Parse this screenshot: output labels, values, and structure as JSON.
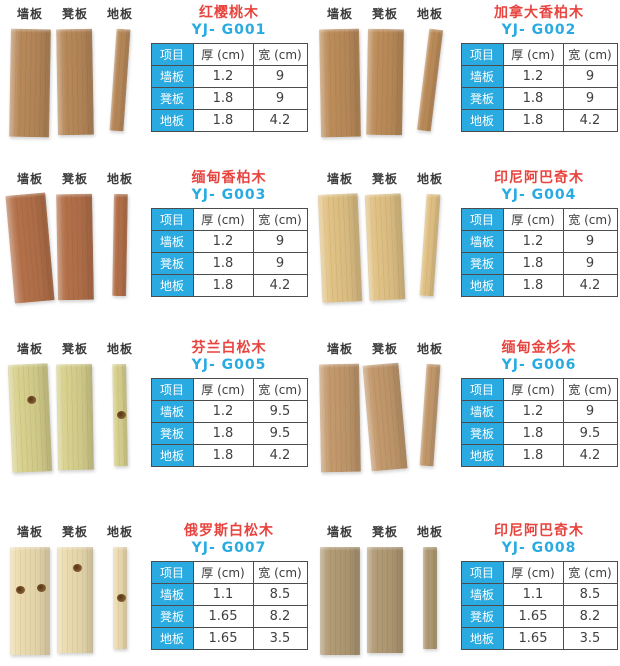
{
  "labels": {
    "wall": "墙板",
    "bench": "凳板",
    "floor": "地板"
  },
  "table_headers": [
    "项目",
    "厚 (cm)",
    "宽 (cm)"
  ],
  "colors": {
    "accent_blue": "#29abe2",
    "product_name_red": "#e8443f",
    "table_border": "#4c4c4c",
    "label_text": "#3b3b3b"
  },
  "products": [
    {
      "name": "红樱桃木",
      "model": "YJ- G001",
      "wood": "#b8895a",
      "rows": [
        {
          "label": "墙板",
          "thick": "1.2",
          "width": "9"
        },
        {
          "label": "凳板",
          "thick": "1.8",
          "width": "9"
        },
        {
          "label": "地板",
          "thick": "1.8",
          "width": "4.2"
        }
      ]
    },
    {
      "name": "加拿大香柏木",
      "model": "YJ- G002",
      "wood": "#bd8d5a",
      "rows": [
        {
          "label": "墙板",
          "thick": "1.2",
          "width": "9"
        },
        {
          "label": "凳板",
          "thick": "1.8",
          "width": "9"
        },
        {
          "label": "地板",
          "thick": "1.8",
          "width": "4.2"
        }
      ]
    },
    {
      "name": "缅甸香柏木",
      "model": "YJ- G003",
      "wood": "#b4714a",
      "rows": [
        {
          "label": "墙板",
          "thick": "1.2",
          "width": "9"
        },
        {
          "label": "凳板",
          "thick": "1.8",
          "width": "9"
        },
        {
          "label": "地板",
          "thick": "1.8",
          "width": "4.2"
        }
      ]
    },
    {
      "name": "印尼阿巴奇木",
      "model": "YJ- G004",
      "wood": "#e2c386",
      "rows": [
        {
          "label": "墙板",
          "thick": "1.2",
          "width": "9"
        },
        {
          "label": "凳板",
          "thick": "1.8",
          "width": "9"
        },
        {
          "label": "地板",
          "thick": "1.8",
          "width": "4.2"
        }
      ]
    },
    {
      "name": "芬兰白松木",
      "model": "YJ- G005",
      "wood": "#d8d18e",
      "rows": [
        {
          "label": "墙板",
          "thick": "1.2",
          "width": "9.5"
        },
        {
          "label": "凳板",
          "thick": "1.8",
          "width": "9.5"
        },
        {
          "label": "地板",
          "thick": "1.8",
          "width": "4.2"
        }
      ]
    },
    {
      "name": "缅甸金杉木",
      "model": "YJ- G006",
      "wood": "#c49a6d",
      "rows": [
        {
          "label": "墙板",
          "thick": "1.2",
          "width": "9"
        },
        {
          "label": "凳板",
          "thick": "1.8",
          "width": "9.5"
        },
        {
          "label": "地板",
          "thick": "1.8",
          "width": "4.2"
        }
      ]
    },
    {
      "name": "俄罗斯白松木",
      "model": "YJ- G007",
      "wood": "#ecdcb0",
      "rows": [
        {
          "label": "墙板",
          "thick": "1.1",
          "width": "8.5"
        },
        {
          "label": "凳板",
          "thick": "1.65",
          "width": "8.2"
        },
        {
          "label": "地板",
          "thick": "1.65",
          "width": "3.5"
        }
      ]
    },
    {
      "name": "印尼阿巴奇木",
      "model": "YJ- G008",
      "wood": "#b29b75",
      "rows": [
        {
          "label": "墙板",
          "thick": "1.1",
          "width": "8.5"
        },
        {
          "label": "凳板",
          "thick": "1.65",
          "width": "8.2"
        },
        {
          "label": "地板",
          "thick": "1.65",
          "width": "3.5"
        }
      ]
    }
  ]
}
